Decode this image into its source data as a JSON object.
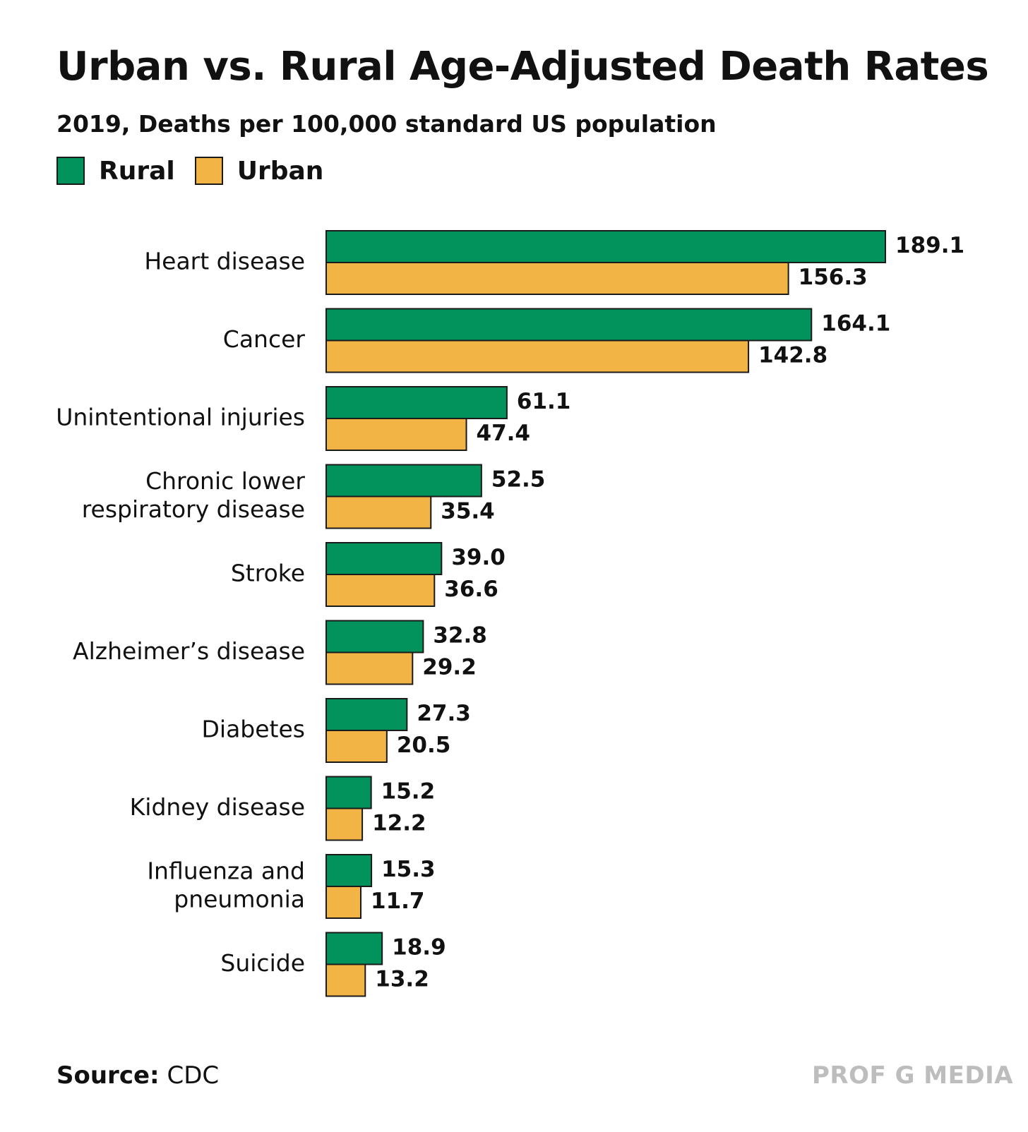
{
  "chart_data": {
    "type": "bar",
    "orientation": "horizontal",
    "title": "Urban vs. Rural Age-Adjusted Death Rates",
    "subtitle": "2019, Deaths per 100,000 standard US population",
    "categories": [
      "Heart disease",
      "Cancer",
      "Unintentional injuries",
      "Chronic lower respiratory disease",
      "Stroke",
      "Alzheimer’s disease",
      "Diabetes",
      "Kidney disease",
      "Influenza and pneumonia",
      "Suicide"
    ],
    "category_lines": [
      [
        "Heart disease"
      ],
      [
        "Cancer"
      ],
      [
        "Unintentional injuries"
      ],
      [
        "Chronic lower",
        "respiratory disease"
      ],
      [
        "Stroke"
      ],
      [
        "Alzheimer’s disease"
      ],
      [
        "Diabetes"
      ],
      [
        "Kidney disease"
      ],
      [
        "Influenza and",
        "pneumonia"
      ],
      [
        "Suicide"
      ]
    ],
    "series": [
      {
        "name": "Rural",
        "color": "#02925b",
        "values": [
          189.1,
          164.1,
          61.1,
          52.5,
          39.0,
          32.8,
          27.3,
          15.2,
          15.3,
          18.9
        ],
        "labels": [
          "189.1",
          "164.1",
          "61.1",
          "52.5",
          "39.0",
          "32.8",
          "27.3",
          "15.2",
          "15.3",
          "18.9"
        ]
      },
      {
        "name": "Urban",
        "color": "#f2b545",
        "values": [
          156.3,
          142.8,
          47.4,
          35.4,
          36.6,
          29.2,
          20.5,
          12.2,
          11.7,
          13.2
        ],
        "labels": [
          "156.3",
          "142.8",
          "47.4",
          "35.4",
          "36.6",
          "29.2",
          "20.5",
          "12.2",
          "11.7",
          "13.2"
        ]
      }
    ],
    "legend_position": "top-left",
    "grid": false
  },
  "source": {
    "prefix": "Source:",
    "text": "CDC"
  },
  "brand": "PROF G MEDIA"
}
